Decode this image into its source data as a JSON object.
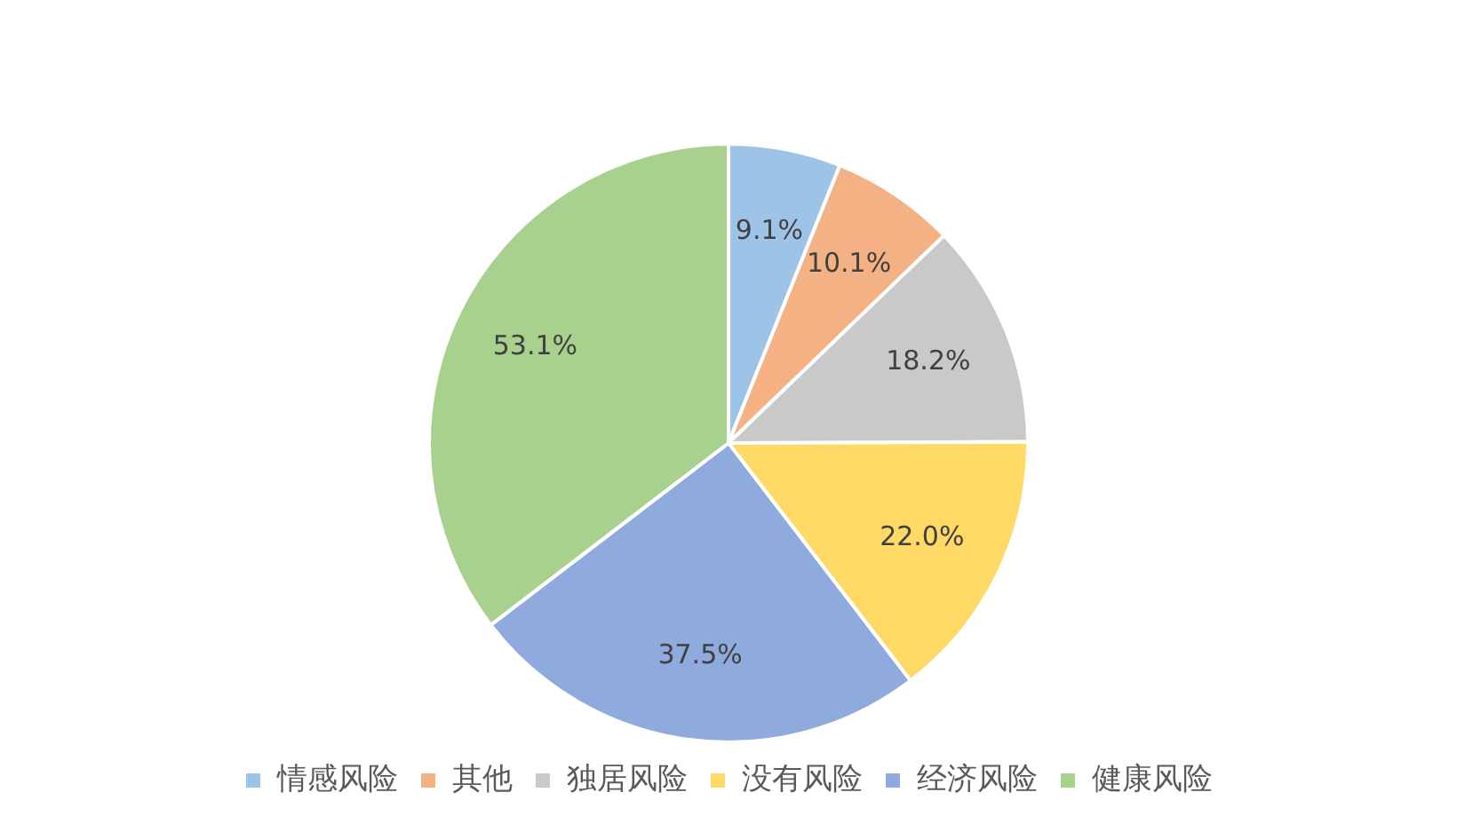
{
  "chart_data": {
    "type": "pie",
    "categories": [
      "情感风险",
      "其他",
      "独居风险",
      "没有风险",
      "经济风险",
      "健康风险"
    ],
    "values": [
      9.1,
      10.1,
      18.2,
      22.0,
      37.5,
      53.1
    ],
    "value_labels": [
      "9.1%",
      "10.1%",
      "18.2%",
      "22.0%",
      "37.5%",
      "53.1%"
    ],
    "colors": [
      "#9dc3e6",
      "#f4b183",
      "#c9c9c9",
      "#ffd966",
      "#8faadc",
      "#a9d18e"
    ],
    "legend": "bottom"
  }
}
